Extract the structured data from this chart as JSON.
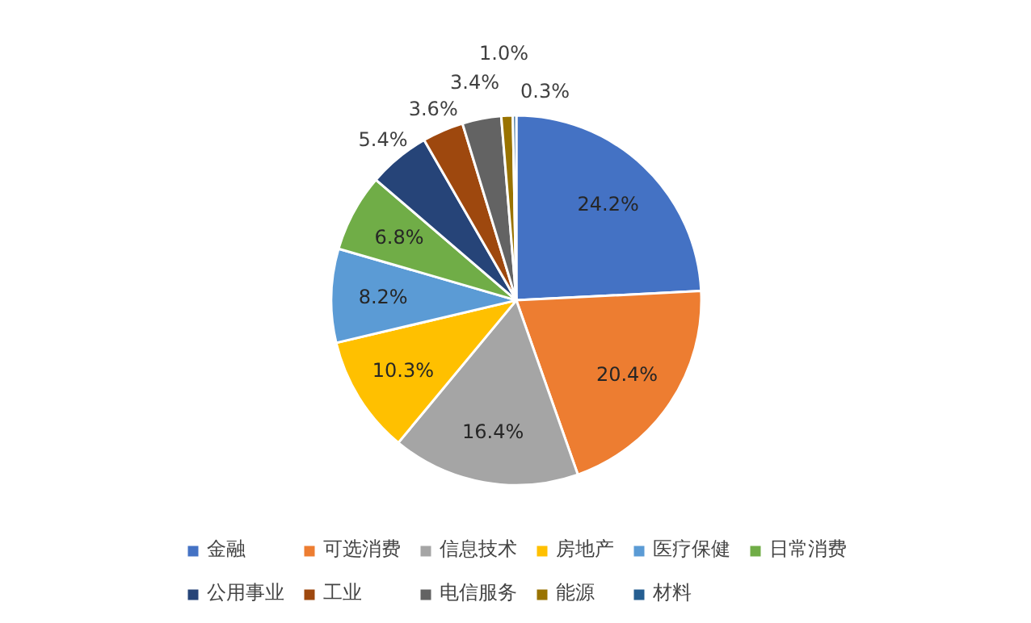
{
  "chart_data": {
    "type": "pie",
    "categories": [
      "金融",
      "可选消费",
      "信息技术",
      "房地产",
      "医疗保健",
      "日常消费",
      "公用事业",
      "工业",
      "电信服务",
      "能源",
      "材料"
    ],
    "values": [
      24.2,
      20.4,
      16.4,
      10.3,
      8.2,
      6.8,
      5.4,
      3.6,
      3.4,
      1.0,
      0.3
    ],
    "colors": [
      "#4472c4",
      "#ed7d31",
      "#a5a5a5",
      "#ffc000",
      "#5b9bd5",
      "#70ad47",
      "#264478",
      "#9e480e",
      "#636363",
      "#997300",
      "#255e91"
    ],
    "value_labels": [
      "24.2%",
      "20.4%",
      "16.4%",
      "10.3%",
      "8.2%",
      "6.8%",
      "5.4%",
      "3.6%",
      "3.4%",
      "1.0%",
      "0.3%"
    ],
    "legend": "bottom"
  }
}
